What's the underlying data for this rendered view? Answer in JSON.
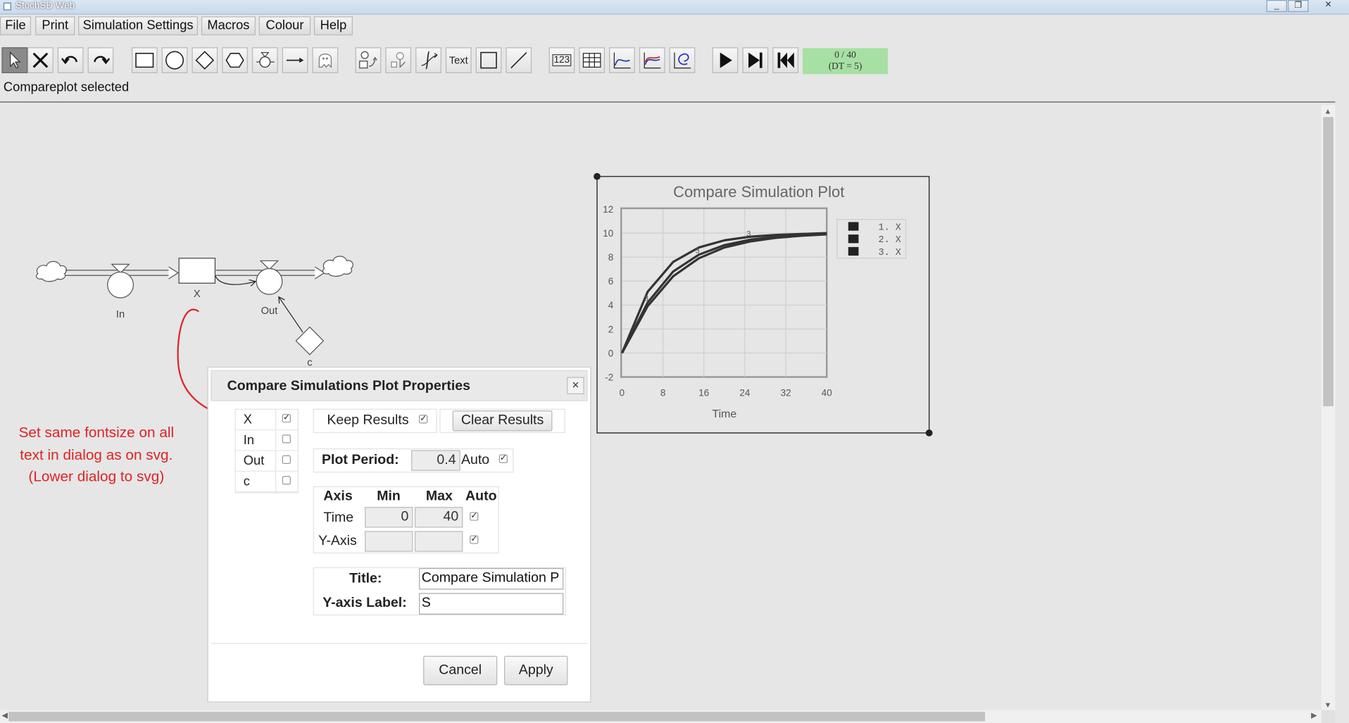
{
  "window": {
    "title": "StochSD Web",
    "controls": [
      "_",
      "❐",
      "✕"
    ]
  },
  "menu": [
    "File",
    "Print",
    "Simulation Settings",
    "Macros",
    "Colour",
    "Help"
  ],
  "toolbar": {
    "text_tool_label": "Text",
    "number_tool_label": "123",
    "icons": [
      "pointer-icon",
      "delete-icon",
      "undo-icon",
      "redo-icon",
      "stock-icon",
      "auxiliary-icon",
      "constant-icon",
      "converter-icon",
      "flow-icon",
      "link-icon",
      "ghost-icon",
      "numberbox-icon",
      "rotate-icon",
      "function-icon",
      "text-icon",
      "rectangle-icon",
      "line-icon",
      "table-icon",
      "timeplot-icon",
      "compareplot-icon",
      "xyplot-icon",
      "play-icon",
      "step-icon",
      "reset-icon"
    ],
    "sim_progress": "0 / 40",
    "sim_dt": "(DT = 5)"
  },
  "status": "Compareplot selected",
  "model": {
    "stock": "X",
    "inflow": "In",
    "outflow": "Out",
    "constant": "c"
  },
  "chart_data": {
    "type": "line",
    "title": "Compare Simulation Plot",
    "xlabel": "Time",
    "ylabel": "",
    "xlim": [
      0,
      40
    ],
    "ylim": [
      -2,
      12
    ],
    "x_ticks": [
      "0",
      "8",
      "16",
      "24",
      "32",
      "40"
    ],
    "y_ticks": [
      "12",
      "10",
      "8",
      "6",
      "4",
      "2",
      "0",
      "-2"
    ],
    "grid": true,
    "legend_position": "right",
    "x": [
      0,
      5,
      10,
      15,
      20,
      25,
      30,
      35,
      40
    ],
    "series": [
      {
        "name": "1. X",
        "color": "#333333",
        "values": [
          0,
          5.1,
          7.6,
          8.8,
          9.4,
          9.7,
          9.85,
          9.93,
          10.0
        ]
      },
      {
        "name": "2. X",
        "color": "#333333",
        "values": [
          0,
          4.2,
          6.8,
          8.2,
          9.0,
          9.45,
          9.7,
          9.85,
          9.95
        ]
      },
      {
        "name": "3. X",
        "color": "#333333",
        "values": [
          0,
          3.9,
          6.4,
          7.9,
          8.8,
          9.3,
          9.6,
          9.78,
          9.9
        ]
      }
    ],
    "curve_label": "3"
  },
  "dialog": {
    "title": "Compare Simulations Plot Properties",
    "close": "×",
    "variables": [
      {
        "name": "X",
        "checked": true
      },
      {
        "name": "In",
        "checked": false
      },
      {
        "name": "Out",
        "checked": false
      },
      {
        "name": "c",
        "checked": false
      }
    ],
    "keep_results_label": "Keep Results",
    "clear_results_label": "Clear Results",
    "plot_period_label": "Plot Period:",
    "plot_period_value": "0.4",
    "auto_label": "Auto",
    "axis_table": {
      "headers": [
        "Axis",
        "Min",
        "Max",
        "Auto"
      ],
      "rows": [
        {
          "axis": "Time",
          "min": "0",
          "max": "40",
          "auto": true
        },
        {
          "axis": "Y-Axis",
          "min": "",
          "max": "",
          "auto": true
        }
      ]
    },
    "title_label": "Title:",
    "title_value": "Compare Simulation P",
    "ylabel_label": "Y-axis Label:",
    "ylabel_value": "S",
    "cancel": "Cancel",
    "apply": "Apply"
  },
  "annotation": {
    "line1": "Set same fontsize on all",
    "line2": "text in dialog as on svg.",
    "line3": "(Lower dialog to svg)",
    "color": "#e02222"
  }
}
